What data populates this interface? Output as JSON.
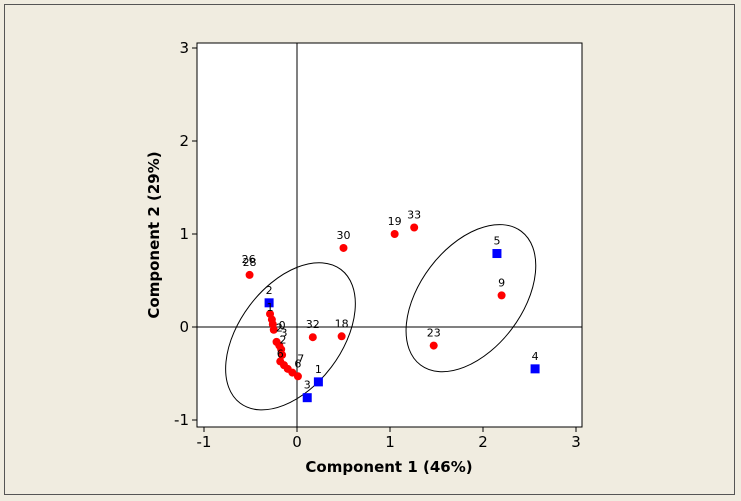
{
  "chart_data": {
    "type": "scatter",
    "xlabel": "Component 1 (46%)",
    "ylabel": "Component 2 (29%)",
    "xlim": [
      -1,
      3
    ],
    "ylim": [
      -1,
      3
    ],
    "xticks": [
      "-1",
      "0",
      "1",
      "2",
      "3"
    ],
    "yticks": [
      "-1",
      "0",
      "1",
      "2",
      "3"
    ],
    "reference_lines": {
      "x": 0,
      "y": 0
    },
    "grid": false,
    "series": [
      {
        "marker": "square",
        "color": "#0000ff",
        "points": [
          {
            "label": "1",
            "x": 0.23,
            "y": -0.59
          },
          {
            "label": "3",
            "x": 0.11,
            "y": -0.76
          },
          {
            "label": "2",
            "x": -0.3,
            "y": 0.26
          },
          {
            "label": "5",
            "x": 2.15,
            "y": 0.79
          },
          {
            "label": "4",
            "x": 2.56,
            "y": -0.45
          }
        ]
      },
      {
        "marker": "circle",
        "color": "#ff0000",
        "points": [
          {
            "label": "28",
            "x": -0.51,
            "y": 0.56
          },
          {
            "label": "",
            "x": -0.29,
            "y": 0.14
          },
          {
            "label": "",
            "x": -0.27,
            "y": 0.08
          },
          {
            "label": "",
            "x": -0.26,
            "y": 0.03
          },
          {
            "label": "",
            "x": -0.25,
            "y": -0.03
          },
          {
            "label": "",
            "x": -0.22,
            "y": -0.16
          },
          {
            "label": "",
            "x": -0.19,
            "y": -0.2
          },
          {
            "label": "",
            "x": -0.17,
            "y": -0.24
          },
          {
            "label": "",
            "x": -0.16,
            "y": -0.3
          },
          {
            "label": "",
            "x": -0.18,
            "y": -0.37
          },
          {
            "label": "",
            "x": -0.14,
            "y": -0.41
          },
          {
            "label": "",
            "x": -0.1,
            "y": -0.45
          },
          {
            "label": "",
            "x": -0.05,
            "y": -0.49
          },
          {
            "label": "6",
            "x": 0.01,
            "y": -0.53
          },
          {
            "label": "32",
            "x": 0.17,
            "y": -0.11
          },
          {
            "label": "18",
            "x": 0.48,
            "y": -0.1
          },
          {
            "label": "30",
            "x": 0.5,
            "y": 0.85
          },
          {
            "label": "19",
            "x": 1.05,
            "y": 1.0
          },
          {
            "label": "33",
            "x": 1.26,
            "y": 1.07
          },
          {
            "label": "9",
            "x": 2.2,
            "y": 0.34
          },
          {
            "label": "23",
            "x": 1.47,
            "y": -0.2
          }
        ]
      }
    ],
    "cluster_labels": [
      {
        "text": "1",
        "x": -0.29,
        "y": 0.17
      },
      {
        "text": "0",
        "x": -0.16,
        "y": -0.02
      },
      {
        "text": "3",
        "x": -0.14,
        "y": -0.1
      },
      {
        "text": "6",
        "x": -0.18,
        "y": -0.33
      },
      {
        "text": "7",
        "x": 0.04,
        "y": -0.38
      },
      {
        "text": "2",
        "x": -0.15,
        "y": -0.18
      },
      {
        "text": "2",
        "x": -0.19,
        "y": -0.05
      },
      {
        "text": "26",
        "x": -0.52,
        "y": 0.69
      }
    ],
    "ellipses": [
      {
        "cx": -0.07,
        "cy": -0.1,
        "rx": 0.9,
        "ry": 0.55,
        "rotation_deg": -53
      },
      {
        "cx": 1.87,
        "cy": 0.31,
        "rx": 0.9,
        "ry": 0.55,
        "rotation_deg": -53
      }
    ]
  }
}
